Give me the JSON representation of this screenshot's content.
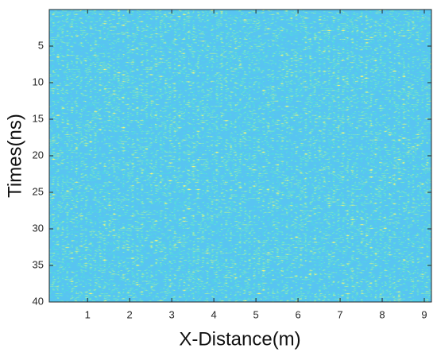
{
  "chart_data": {
    "type": "heatmap",
    "x_label": "X-Distance(m)",
    "y_label": "Times(ns)",
    "xlim": [
      0.09,
      9.17
    ],
    "xticks": [
      1,
      2,
      3,
      4,
      5,
      6,
      7,
      8,
      9
    ],
    "ylim": [
      0,
      40
    ],
    "yticks": [
      5,
      10,
      15,
      20,
      25,
      30,
      35,
      40
    ],
    "y_reversed": true
  }
}
